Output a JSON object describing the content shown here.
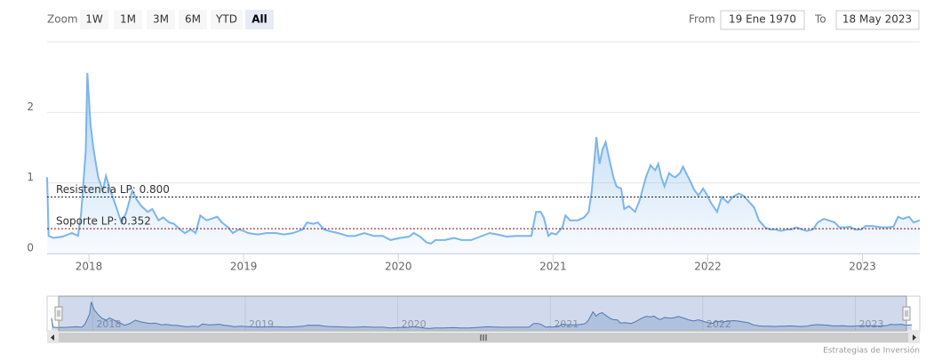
{
  "chart_data": {
    "type": "area",
    "range_selector": {
      "zoom_label": "Zoom",
      "buttons": [
        "1W",
        "1M",
        "3M",
        "6M",
        "YTD",
        "All"
      ],
      "selected": 5,
      "from_label": "From",
      "from": "19 Ene 1970",
      "to_label": "To",
      "to": "18 May 2023"
    },
    "color": "#7cb5ec",
    "x": [
      2017.73,
      2017.74,
      2017.77,
      2017.83,
      2017.89,
      2017.93,
      2017.95,
      2017.98,
      2017.99,
      2018.01,
      2018.03,
      2018.06,
      2018.09,
      2018.11,
      2018.14,
      2018.17,
      2018.21,
      2018.24,
      2018.28,
      2018.31,
      2018.34,
      2018.38,
      2018.41,
      2018.45,
      2018.48,
      2018.52,
      2018.55,
      2018.59,
      2018.62,
      2018.66,
      2018.69,
      2018.72,
      2018.76,
      2018.79,
      2018.83,
      2018.86,
      2018.9,
      2018.93,
      2018.97,
      2019.0,
      2019.03,
      2019.09,
      2019.15,
      2019.21,
      2019.26,
      2019.32,
      2019.38,
      2019.41,
      2019.45,
      2019.48,
      2019.52,
      2019.55,
      2019.61,
      2019.67,
      2019.72,
      2019.78,
      2019.84,
      2019.9,
      2019.95,
      2020.01,
      2020.07,
      2020.1,
      2020.14,
      2020.18,
      2020.21,
      2020.24,
      2020.3,
      2020.36,
      2020.41,
      2020.47,
      2020.53,
      2020.59,
      2020.64,
      2020.7,
      2020.76,
      2020.82,
      2020.86,
      2020.89,
      2020.92,
      2020.94,
      2020.97,
      2020.99,
      2021.02,
      2021.06,
      2021.08,
      2021.11,
      2021.16,
      2021.2,
      2021.23,
      2021.25,
      2021.28,
      2021.3,
      2021.32,
      2021.34,
      2021.37,
      2021.39,
      2021.41,
      2021.44,
      2021.46,
      2021.49,
      2021.53,
      2021.56,
      2021.6,
      2021.63,
      2021.66,
      2021.68,
      2021.7,
      2021.72,
      2021.75,
      2021.77,
      2021.79,
      2021.82,
      2021.84,
      2021.86,
      2021.89,
      2021.91,
      2021.94,
      2021.97,
      2021.99,
      2022.02,
      2022.06,
      2022.09,
      2022.13,
      2022.16,
      2022.2,
      2022.23,
      2022.26,
      2022.3,
      2022.33,
      2022.37,
      2022.4,
      2022.44,
      2022.47,
      2022.51,
      2022.54,
      2022.57,
      2022.61,
      2022.64,
      2022.68,
      2022.71,
      2022.75,
      2022.78,
      2022.82,
      2022.85,
      2022.89,
      2022.92,
      2022.95,
      2022.99,
      2023.02,
      2023.06,
      2023.09,
      2023.13,
      2023.16,
      2023.2,
      2023.23,
      2023.26,
      2023.3,
      2023.33,
      2023.37
    ],
    "values": [
      1.08,
      0.25,
      0.22,
      0.24,
      0.29,
      0.25,
      0.57,
      1.46,
      2.56,
      1.84,
      1.48,
      1.08,
      0.89,
      1.1,
      0.89,
      0.7,
      0.44,
      0.57,
      0.89,
      0.76,
      0.67,
      0.59,
      0.63,
      0.47,
      0.51,
      0.44,
      0.42,
      0.34,
      0.29,
      0.34,
      0.29,
      0.54,
      0.47,
      0.49,
      0.52,
      0.44,
      0.37,
      0.29,
      0.34,
      0.32,
      0.29,
      0.27,
      0.29,
      0.29,
      0.27,
      0.29,
      0.34,
      0.44,
      0.42,
      0.44,
      0.34,
      0.32,
      0.29,
      0.25,
      0.25,
      0.29,
      0.25,
      0.25,
      0.19,
      0.22,
      0.24,
      0.29,
      0.24,
      0.16,
      0.14,
      0.19,
      0.19,
      0.22,
      0.19,
      0.19,
      0.24,
      0.29,
      0.27,
      0.24,
      0.25,
      0.25,
      0.25,
      0.59,
      0.59,
      0.51,
      0.25,
      0.29,
      0.27,
      0.37,
      0.54,
      0.47,
      0.47,
      0.51,
      0.59,
      0.89,
      1.65,
      1.27,
      1.48,
      1.58,
      1.27,
      1.08,
      0.95,
      0.92,
      0.63,
      0.67,
      0.59,
      0.76,
      1.08,
      1.25,
      1.18,
      1.27,
      1.08,
      0.95,
      1.14,
      1.1,
      1.08,
      1.14,
      1.23,
      1.14,
      1.01,
      0.91,
      0.82,
      0.92,
      0.85,
      0.72,
      0.59,
      0.8,
      0.72,
      0.8,
      0.85,
      0.82,
      0.75,
      0.65,
      0.47,
      0.37,
      0.34,
      0.34,
      0.32,
      0.34,
      0.34,
      0.37,
      0.34,
      0.32,
      0.34,
      0.44,
      0.49,
      0.47,
      0.44,
      0.37,
      0.37,
      0.38,
      0.34,
      0.34,
      0.39,
      0.39,
      0.38,
      0.37,
      0.37,
      0.38,
      0.52,
      0.49,
      0.52,
      0.44,
      0.47
    ],
    "xlim": [
      2017.73,
      2023.37
    ],
    "xticks": [
      2018,
      2019,
      2020,
      2021,
      2022,
      2023
    ],
    "ylim": [
      0,
      3
    ],
    "yticks": [
      0,
      1,
      2
    ],
    "grid": true,
    "plot_lines": [
      {
        "value": 0.8,
        "label": "Resistencia LP: 0.800",
        "color": "#222222"
      },
      {
        "value": 0.352,
        "label": "Soporte LP: 0.352",
        "color": "#7a1010"
      }
    ],
    "credits": "Estrategias de Inversión"
  }
}
